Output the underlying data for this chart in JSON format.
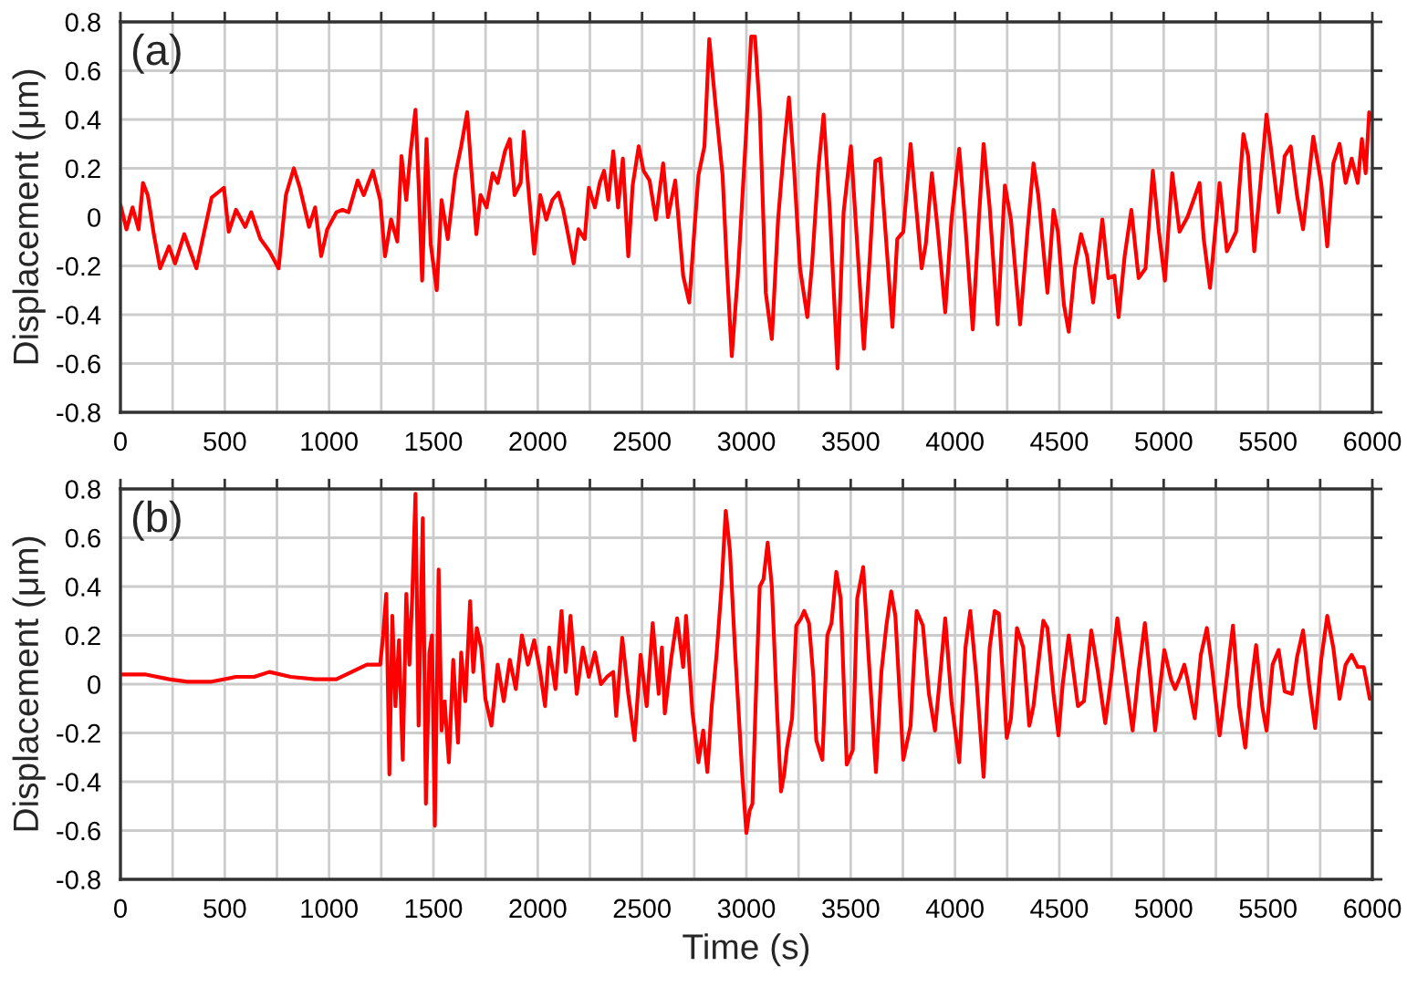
{
  "chart_data": [
    {
      "type": "line",
      "ylabel": "Displacement (μm)",
      "annotations": [
        "(a)"
      ],
      "color": "#ff0000",
      "grid": true,
      "xlim": [
        0,
        6000
      ],
      "ylim": [
        -0.8,
        0.8
      ],
      "xticks": [
        0,
        {
          "value": 250,
          "label": null
        },
        500,
        {
          "value": 750,
          "label": null
        },
        1000,
        {
          "value": 1250,
          "label": null
        },
        1500,
        {
          "value": 1750,
          "label": null
        },
        2000,
        {
          "value": 2250,
          "label": null
        },
        2500,
        {
          "value": 2750,
          "label": null
        },
        3000,
        {
          "value": 3250,
          "label": null
        },
        3500,
        {
          "value": 3750,
          "label": null
        },
        4000,
        {
          "value": 4250,
          "label": null
        },
        4500,
        {
          "value": 4750,
          "label": null
        },
        5000,
        {
          "value": 5250,
          "label": null
        },
        5500,
        {
          "value": 5750,
          "label": null
        },
        6000
      ],
      "yticks": [
        -0.8,
        -0.6,
        -0.4,
        -0.2,
        0,
        0.2,
        0.4,
        0.6,
        0.8
      ],
      "x": [
        0,
        29,
        58,
        87,
        108,
        131,
        160,
        190,
        233,
        262,
        306,
        335,
        364,
        394,
        437,
        466,
        496,
        519,
        554,
        598,
        627,
        671,
        714,
        758,
        793,
        831,
        860,
        904,
        933,
        962,
        991,
        1035,
        1064,
        1093,
        1137,
        1166,
        1210,
        1245,
        1268,
        1297,
        1327,
        1347,
        1370,
        1391,
        1414,
        1429,
        1446,
        1467,
        1487,
        1516,
        1539,
        1569,
        1604,
        1633,
        1662,
        1682,
        1706,
        1726,
        1755,
        1784,
        1808,
        1843,
        1866,
        1889,
        1918,
        1933,
        1953,
        1983,
        2012,
        2041,
        2070,
        2099,
        2122,
        2143,
        2172,
        2195,
        2225,
        2245,
        2274,
        2297,
        2318,
        2338,
        2362,
        2385,
        2408,
        2434,
        2455,
        2484,
        2507,
        2536,
        2566,
        2601,
        2624,
        2659,
        2697,
        2726,
        2746,
        2770,
        2799,
        2822,
        2851,
        2886,
        2907,
        2930,
        2959,
        2997,
        3023,
        3041,
        3064,
        3093,
        3122,
        3152,
        3181,
        3204,
        3227,
        3257,
        3292,
        3315,
        3344,
        3370,
        3399,
        3437,
        3466,
        3501,
        3531,
        3563,
        3592,
        3618,
        3641,
        3671,
        3700,
        3723,
        3752,
        3787,
        3816,
        3840,
        3860,
        3889,
        3918,
        3953,
        3983,
        4020,
        4050,
        4085,
        4114,
        4137,
        4166,
        4204,
        4239,
        4268,
        4312,
        4347,
        4376,
        4399,
        4443,
        4472,
        4493,
        4522,
        4545,
        4574,
        4604,
        4633,
        4662,
        4706,
        4735,
        4764,
        4784,
        4813,
        4845,
        4880,
        4913,
        4948,
        4977,
        5006,
        5041,
        5076,
        5114,
        5172,
        5192,
        5222,
        5268,
        5303,
        5347,
        5382,
        5405,
        5434,
        5464,
        5493,
        5513,
        5551,
        5580,
        5609,
        5639,
        5668,
        5717,
        5755,
        5784,
        5813,
        5843,
        5872,
        5901,
        5930,
        5950,
        5968,
        5985,
        5997
      ],
      "values": [
        0.05,
        -0.05,
        0.04,
        -0.05,
        0.14,
        0.09,
        -0.07,
        -0.21,
        -0.12,
        -0.19,
        -0.07,
        -0.14,
        -0.21,
        -0.09,
        0.08,
        0.1,
        0.12,
        -0.06,
        0.03,
        -0.04,
        0.02,
        -0.09,
        -0.14,
        -0.21,
        0.09,
        0.2,
        0.12,
        -0.04,
        0.04,
        -0.16,
        -0.05,
        0.02,
        0.03,
        0.02,
        0.15,
        0.09,
        0.19,
        0.07,
        -0.16,
        -0.01,
        -0.1,
        0.25,
        0.07,
        0.27,
        0.44,
        0.14,
        -0.26,
        0.32,
        -0.11,
        -0.3,
        0.07,
        -0.09,
        0.17,
        0.29,
        0.43,
        0.19,
        -0.07,
        0.09,
        0.04,
        0.18,
        0.14,
        0.27,
        0.32,
        0.09,
        0.14,
        0.35,
        0.14,
        -0.15,
        0.09,
        -0.01,
        0.07,
        0.1,
        0.03,
        -0.06,
        -0.19,
        -0.05,
        -0.09,
        0.12,
        0.04,
        0.14,
        0.19,
        0.07,
        0.27,
        0.04,
        0.24,
        -0.16,
        0.13,
        0.29,
        0.19,
        0.15,
        -0.01,
        0.22,
        0.0,
        0.15,
        -0.24,
        -0.35,
        -0.11,
        0.17,
        0.29,
        0.73,
        0.47,
        0.17,
        -0.21,
        -0.57,
        -0.24,
        0.32,
        0.74,
        0.74,
        0.44,
        -0.31,
        -0.5,
        -0.01,
        0.29,
        0.49,
        0.22,
        -0.21,
        -0.41,
        -0.19,
        0.19,
        0.42,
        0.04,
        -0.62,
        0.02,
        0.29,
        -0.11,
        -0.54,
        -0.16,
        0.23,
        0.24,
        -0.11,
        -0.45,
        -0.09,
        -0.06,
        0.3,
        0.02,
        -0.21,
        -0.11,
        0.18,
        -0.06,
        -0.39,
        -0.01,
        0.28,
        -0.04,
        -0.46,
        -0.01,
        0.3,
        0.04,
        -0.44,
        0.13,
        -0.01,
        -0.44,
        -0.06,
        0.22,
        0.09,
        -0.31,
        0.03,
        -0.06,
        -0.36,
        -0.47,
        -0.21,
        -0.07,
        -0.16,
        -0.35,
        -0.01,
        -0.25,
        -0.24,
        -0.41,
        -0.16,
        0.03,
        -0.25,
        -0.21,
        0.19,
        -0.06,
        -0.26,
        0.18,
        -0.06,
        0.0,
        0.14,
        -0.09,
        -0.29,
        0.14,
        -0.14,
        -0.06,
        0.34,
        0.25,
        -0.14,
        0.14,
        0.42,
        0.29,
        0.02,
        0.25,
        0.29,
        0.09,
        -0.05,
        0.33,
        0.14,
        -0.12,
        0.22,
        0.3,
        0.14,
        0.24,
        0.14,
        0.32,
        0.18,
        0.43,
        0.4
      ]
    },
    {
      "type": "line",
      "xlabel": "Time (s)",
      "ylabel": "Displacement (μm)",
      "annotations": [
        "(b)"
      ],
      "color": "#ff0000",
      "grid": true,
      "xlim": [
        0,
        6000
      ],
      "ylim": [
        -0.8,
        0.8
      ],
      "xticks": [
        0,
        {
          "value": 250,
          "label": null
        },
        500,
        {
          "value": 750,
          "label": null
        },
        1000,
        {
          "value": 1250,
          "label": null
        },
        1500,
        {
          "value": 1750,
          "label": null
        },
        2000,
        {
          "value": 2250,
          "label": null
        },
        2500,
        {
          "value": 2750,
          "label": null
        },
        3000,
        {
          "value": 3250,
          "label": null
        },
        3500,
        {
          "value": 3750,
          "label": null
        },
        4000,
        {
          "value": 4250,
          "label": null
        },
        4500,
        {
          "value": 4750,
          "label": null
        },
        5000,
        {
          "value": 5250,
          "label": null
        },
        5500,
        {
          "value": 5750,
          "label": null
        },
        6000
      ],
      "yticks": [
        -0.8,
        -0.6,
        -0.4,
        -0.2,
        0,
        0.2,
        0.4,
        0.6,
        0.8
      ],
      "x": [
        0,
        117,
        233,
        321,
        437,
        554,
        641,
        714,
        816,
        933,
        1035,
        1108,
        1181,
        1245,
        1259,
        1274,
        1289,
        1303,
        1318,
        1335,
        1353,
        1370,
        1385,
        1399,
        1414,
        1429,
        1449,
        1464,
        1481,
        1493,
        1507,
        1525,
        1539,
        1554,
        1574,
        1595,
        1618,
        1633,
        1653,
        1676,
        1691,
        1708,
        1729,
        1749,
        1778,
        1808,
        1837,
        1866,
        1895,
        1924,
        1953,
        1983,
        2012,
        2035,
        2055,
        2085,
        2114,
        2134,
        2157,
        2187,
        2216,
        2245,
        2274,
        2303,
        2332,
        2362,
        2376,
        2405,
        2434,
        2464,
        2493,
        2522,
        2551,
        2580,
        2595,
        2609,
        2639,
        2668,
        2697,
        2711,
        2741,
        2770,
        2793,
        2813,
        2834,
        2857,
        2881,
        2901,
        2921,
        2945,
        2980,
        3000,
        3015,
        3029,
        3044,
        3064,
        3082,
        3102,
        3122,
        3146,
        3166,
        3181,
        3195,
        3219,
        3239,
        3262,
        3277,
        3300,
        3321,
        3335,
        3364,
        3388,
        3408,
        3431,
        3452,
        3481,
        3510,
        3531,
        3560,
        3583,
        3621,
        3647,
        3671,
        3694,
        3714,
        3752,
        3787,
        3816,
        3846,
        3875,
        3904,
        3927,
        3953,
        3983,
        4020,
        4050,
        4073,
        4102,
        4137,
        4166,
        4190,
        4210,
        4248,
        4268,
        4297,
        4327,
        4356,
        4376,
        4423,
        4443,
        4472,
        4496,
        4516,
        4545,
        4589,
        4618,
        4653,
        4685,
        4720,
        4749,
        4778,
        4813,
        4851,
        4880,
        4910,
        4939,
        4959,
        5003,
        5035,
        5055,
        5079,
        5099,
        5114,
        5149,
        5178,
        5207,
        5230,
        5268,
        5303,
        5332,
        5362,
        5391,
        5414,
        5443,
        5472,
        5493,
        5522,
        5551,
        5580,
        5615,
        5639,
        5668,
        5697,
        5726,
        5755,
        5784,
        5813,
        5843,
        5872,
        5901,
        5930,
        5959,
        5988
      ],
      "values": [
        0.04,
        0.04,
        0.02,
        0.01,
        0.01,
        0.03,
        0.03,
        0.05,
        0.03,
        0.02,
        0.02,
        0.05,
        0.08,
        0.08,
        0.2,
        0.37,
        -0.37,
        0.28,
        -0.09,
        0.18,
        -0.31,
        0.37,
        0.08,
        0.37,
        0.78,
        -0.17,
        0.68,
        -0.49,
        0.13,
        0.2,
        -0.58,
        0.47,
        -0.19,
        -0.07,
        -0.32,
        0.1,
        -0.24,
        0.13,
        -0.07,
        0.34,
        0.05,
        0.23,
        0.15,
        -0.06,
        -0.17,
        0.08,
        -0.07,
        0.1,
        -0.02,
        0.2,
        0.08,
        0.18,
        0.05,
        -0.09,
        0.15,
        -0.02,
        0.3,
        0.05,
        0.28,
        -0.04,
        0.15,
        0.03,
        0.13,
        0.0,
        0.03,
        0.05,
        -0.13,
        0.19,
        -0.04,
        -0.23,
        0.12,
        -0.09,
        0.25,
        -0.04,
        0.15,
        -0.12,
        0.1,
        0.27,
        0.07,
        0.28,
        -0.11,
        -0.32,
        -0.19,
        -0.36,
        -0.09,
        0.12,
        0.4,
        0.71,
        0.55,
        0.15,
        -0.37,
        -0.61,
        -0.52,
        -0.49,
        -0.09,
        0.4,
        0.43,
        0.58,
        0.4,
        -0.09,
        -0.44,
        -0.37,
        -0.26,
        -0.14,
        0.24,
        0.27,
        0.3,
        0.25,
        0.03,
        -0.23,
        -0.31,
        0.2,
        0.25,
        0.46,
        0.35,
        -0.33,
        -0.27,
        0.35,
        0.48,
        0.15,
        -0.36,
        0.05,
        0.24,
        0.38,
        0.28,
        -0.31,
        -0.17,
        0.3,
        0.24,
        -0.04,
        -0.19,
        0.02,
        0.27,
        -0.07,
        -0.32,
        0.15,
        0.3,
        0.03,
        -0.38,
        0.15,
        0.3,
        0.29,
        -0.22,
        -0.14,
        0.23,
        0.15,
        -0.17,
        -0.09,
        0.26,
        0.23,
        -0.04,
        -0.21,
        0.0,
        0.2,
        -0.09,
        -0.07,
        0.22,
        0.05,
        -0.16,
        0.03,
        0.27,
        0.05,
        -0.19,
        0.05,
        0.25,
        0.0,
        -0.19,
        0.14,
        0.02,
        -0.02,
        0.03,
        0.08,
        0.02,
        -0.14,
        0.12,
        0.23,
        0.08,
        -0.21,
        0.03,
        0.24,
        -0.09,
        -0.26,
        -0.04,
        0.16,
        -0.09,
        -0.19,
        0.08,
        0.14,
        -0.03,
        -0.04,
        0.11,
        0.22,
        0.0,
        -0.18,
        0.1,
        0.28,
        0.15,
        -0.06,
        0.08,
        0.12,
        0.07,
        0.07,
        -0.06
      ]
    }
  ]
}
